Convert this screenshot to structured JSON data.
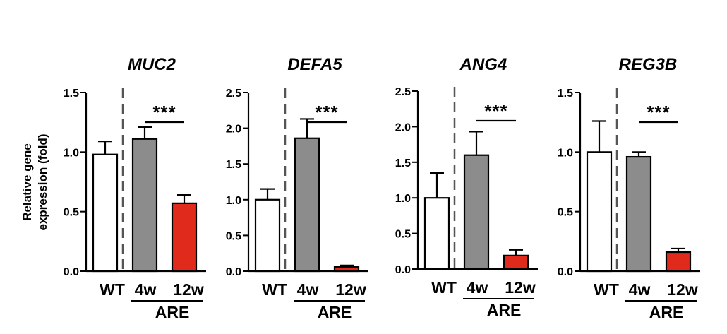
{
  "y_label_lines": [
    "Relative gene",
    "expression (fold)"
  ],
  "chart_data": [
    {
      "type": "bar",
      "title": "MUC2",
      "categories": [
        "WT",
        "4w",
        "12w"
      ],
      "group_label": "ARE",
      "values": [
        0.98,
        1.11,
        0.57
      ],
      "errors": [
        0.11,
        0.1,
        0.07
      ],
      "ylim": [
        0,
        1.5
      ],
      "yticks": [
        0.0,
        0.5,
        1.0,
        1.5
      ],
      "significance": "***",
      "colors": [
        "#ffffff",
        "#8c8c8c",
        "#e02a1c"
      ]
    },
    {
      "type": "bar",
      "title": "DEFA5",
      "categories": [
        "WT",
        "4w",
        "12w"
      ],
      "group_label": "ARE",
      "values": [
        1.0,
        1.86,
        0.06
      ],
      "errors": [
        0.15,
        0.27,
        0.02
      ],
      "ylim": [
        0,
        2.5
      ],
      "yticks": [
        0.0,
        0.5,
        1.0,
        1.5,
        2.0,
        2.5
      ],
      "significance": "***",
      "colors": [
        "#ffffff",
        "#8c8c8c",
        "#e02a1c"
      ]
    },
    {
      "type": "bar",
      "title": "ANG4",
      "categories": [
        "WT",
        "4w",
        "12w"
      ],
      "group_label": "ARE",
      "values": [
        1.0,
        1.6,
        0.19
      ],
      "errors": [
        0.35,
        0.33,
        0.08
      ],
      "ylim": [
        0,
        2.5
      ],
      "yticks": [
        0.0,
        0.5,
        1.0,
        1.5,
        2.0,
        2.5
      ],
      "significance": "***",
      "colors": [
        "#ffffff",
        "#8c8c8c",
        "#e02a1c"
      ]
    },
    {
      "type": "bar",
      "title": "REG3B",
      "categories": [
        "WT",
        "4w",
        "12w"
      ],
      "group_label": "ARE",
      "values": [
        1.0,
        0.96,
        0.16
      ],
      "errors": [
        0.26,
        0.04,
        0.03
      ],
      "ylim": [
        0,
        1.5
      ],
      "yticks": [
        0.0,
        0.5,
        1.0,
        1.5
      ],
      "significance": "***",
      "colors": [
        "#ffffff",
        "#8c8c8c",
        "#e02a1c"
      ]
    }
  ]
}
